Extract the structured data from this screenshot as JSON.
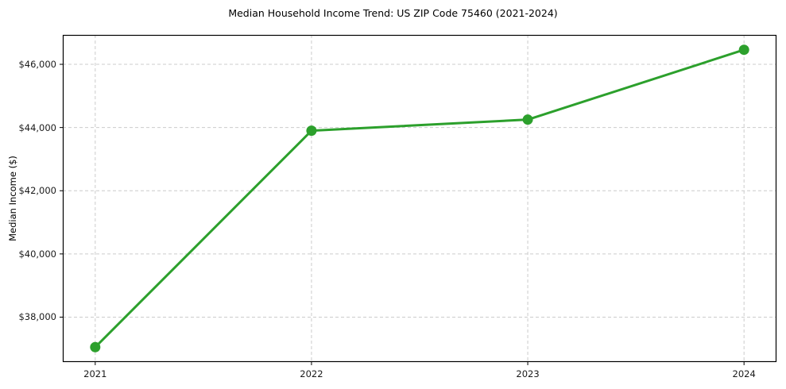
{
  "chart_data": {
    "type": "line",
    "title": "Median Household Income Trend: US ZIP Code 75460 (2021-2024)",
    "xlabel": "",
    "ylabel": "Median Income ($)",
    "categories": [
      "2021",
      "2022",
      "2023",
      "2024"
    ],
    "series": [
      {
        "values": [
          37050,
          43900,
          44250,
          46460
        ]
      }
    ],
    "yticks": [
      38000,
      40000,
      42000,
      44000,
      46000
    ],
    "ytick_labels": [
      "$38,000",
      "$40,000",
      "$42,000",
      "$44,000",
      "$46,000"
    ],
    "ylim": [
      36580,
      46930
    ],
    "x_margin_fraction": 0.05,
    "grid": true,
    "grid_style": "dashed",
    "legend": false,
    "colors": {
      "line": "#2ca02c",
      "marker": "#2ca02c",
      "grid": "#cccccc",
      "spine": "#000000",
      "tick_text": "#1a1a1a",
      "background": "#ffffff"
    }
  }
}
